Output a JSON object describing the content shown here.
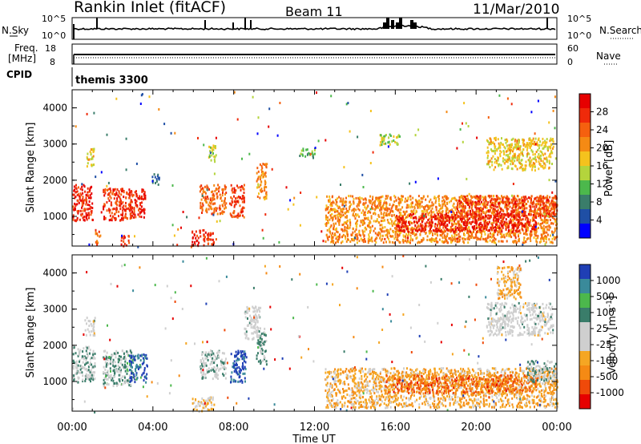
{
  "header": {
    "station": "Rankin Inlet (fitACF)",
    "beam": "Beam 11",
    "date": "11/Mar/2010"
  },
  "noise_panel": {
    "left_label": "N.Sky",
    "left_ticks": [
      "10^5",
      "10^0"
    ],
    "right_ticks": [
      "10^5",
      "10^0"
    ],
    "right_label": "N.Search"
  },
  "freq_panel": {
    "left_label_1": "Freq.",
    "left_label_2": "[MHz]",
    "left_ticks": [
      "18",
      "8"
    ],
    "right_ticks": [
      "60",
      "0"
    ],
    "right_label": "Nave"
  },
  "cpid": {
    "label": "CPID",
    "value": "themis 3300"
  },
  "colors": {
    "power_scale": [
      "#0000ff",
      "#1f4fa5",
      "#3a7d6a",
      "#4cb84c",
      "#b4d43c",
      "#f5c21d",
      "#f58a14",
      "#f5600f",
      "#ef2a0a",
      "#e60000"
    ],
    "velocity_scale": [
      "#e60000",
      "#ef4a0a",
      "#f58a14",
      "#f5a623",
      "#cfcfcf",
      "#cfcfcf",
      "#3a7d6a",
      "#4cb84c",
      "#3a8a9a",
      "#1f3fb5"
    ]
  },
  "chart_data": [
    {
      "type": "heatmap",
      "name_hint": "power",
      "ylabel": "Slant Range [km]",
      "xlabel": "",
      "ylim": [
        180,
        4500
      ],
      "xlim_hours": [
        0,
        24
      ],
      "yticks": [
        "4000",
        "3000",
        "2000",
        "1000"
      ],
      "xticks": [
        "00:00",
        "04:00",
        "08:00",
        "12:00",
        "16:00",
        "20:00",
        "00:00"
      ],
      "colorbar": {
        "label": "Power [dB]",
        "ticks": [
          "28",
          "24",
          "20",
          "16",
          "12",
          "8",
          "4"
        ],
        "range": [
          0,
          30
        ]
      },
      "regions": [
        {
          "t": [
            0.0,
            1.0
          ],
          "r": [
            900,
            1900
          ],
          "v": 26
        },
        {
          "t": [
            0.7,
            1.1
          ],
          "r": [
            2400,
            2900
          ],
          "v": 16
        },
        {
          "t": [
            1.5,
            3.0
          ],
          "r": [
            900,
            1800
          ],
          "v": 25
        },
        {
          "t": [
            2.8,
            3.6
          ],
          "r": [
            1000,
            1800
          ],
          "v": 26
        },
        {
          "t": [
            1.1,
            1.4
          ],
          "r": [
            250,
            650
          ],
          "v": 22
        },
        {
          "t": [
            2.4,
            2.8
          ],
          "r": [
            200,
            500
          ],
          "v": 24
        },
        {
          "t": [
            3.9,
            4.3
          ],
          "r": [
            1900,
            2200
          ],
          "v": 6
        },
        {
          "t": [
            5.9,
            7.0
          ],
          "r": [
            200,
            650
          ],
          "v": 26
        },
        {
          "t": [
            6.3,
            7.6
          ],
          "r": [
            1100,
            1900
          ],
          "v": 22
        },
        {
          "t": [
            7.8,
            8.5
          ],
          "r": [
            1000,
            1900
          ],
          "v": 24
        },
        {
          "t": [
            6.7,
            7.1
          ],
          "r": [
            2500,
            3000
          ],
          "v": 14
        },
        {
          "t": [
            9.1,
            9.6
          ],
          "r": [
            1500,
            2500
          ],
          "v": 20
        },
        {
          "t": [
            11.2,
            12.0
          ],
          "r": [
            2650,
            2900
          ],
          "v": 10
        },
        {
          "t": [
            12.5,
            24.0
          ],
          "r": [
            300,
            1600
          ],
          "v": 20
        },
        {
          "t": [
            16.0,
            23.0
          ],
          "r": [
            600,
            1100
          ],
          "v": 27
        },
        {
          "t": [
            19.0,
            24.0
          ],
          "r": [
            1000,
            1600
          ],
          "v": 25
        },
        {
          "t": [
            20.5,
            23.8
          ],
          "r": [
            2300,
            3200
          ],
          "v": 16
        },
        {
          "t": [
            15.2,
            16.2
          ],
          "r": [
            3000,
            3300
          ],
          "v": 14
        }
      ]
    },
    {
      "type": "heatmap",
      "name_hint": "velocity",
      "ylabel": "Slant Range [km]",
      "xlabel": "Time UT",
      "ylim": [
        180,
        4500
      ],
      "xlim_hours": [
        0,
        24
      ],
      "yticks": [
        "4000",
        "3000",
        "2000",
        "1000"
      ],
      "xticks": [
        "00:00",
        "04:00",
        "08:00",
        "12:00",
        "16:00",
        "20:00",
        "00:00"
      ],
      "colorbar": {
        "label": "Velocity [m s^-1]",
        "ticks": [
          "1000",
          "500",
          "100",
          "25",
          "-25",
          "-100",
          "-500",
          "-1000"
        ],
        "range": [
          -1000,
          1000
        ]
      },
      "regions": [
        {
          "t": [
            0.0,
            1.1
          ],
          "r": [
            1000,
            2000
          ],
          "v": 150
        },
        {
          "t": [
            1.5,
            3.0
          ],
          "r": [
            900,
            1900
          ],
          "v": 200
        },
        {
          "t": [
            2.8,
            3.7
          ],
          "r": [
            1000,
            1800
          ],
          "v": 800
        },
        {
          "t": [
            0.6,
            1.1
          ],
          "r": [
            2300,
            2800
          ],
          "v": 0
        },
        {
          "t": [
            5.9,
            7.0
          ],
          "r": [
            200,
            600
          ],
          "v": -150
        },
        {
          "t": [
            6.3,
            7.6
          ],
          "r": [
            1100,
            1900
          ],
          "v": 150
        },
        {
          "t": [
            7.8,
            8.6
          ],
          "r": [
            1000,
            1900
          ],
          "v": 900
        },
        {
          "t": [
            8.5,
            9.3
          ],
          "r": [
            2200,
            3100
          ],
          "v": 0
        },
        {
          "t": [
            9.1,
            9.6
          ],
          "r": [
            1500,
            2500
          ],
          "v": 200
        },
        {
          "t": [
            12.5,
            24.0
          ],
          "r": [
            300,
            1400
          ],
          "v": -300
        },
        {
          "t": [
            15.5,
            23.0
          ],
          "r": [
            700,
            1200
          ],
          "v": -600
        },
        {
          "t": [
            22.5,
            24.0
          ],
          "r": [
            1000,
            1600
          ],
          "v": 150
        },
        {
          "t": [
            20.5,
            23.8
          ],
          "r": [
            2300,
            3200
          ],
          "v": 0
        },
        {
          "t": [
            21.0,
            22.2
          ],
          "r": [
            3300,
            4200
          ],
          "v": -300
        }
      ]
    }
  ]
}
